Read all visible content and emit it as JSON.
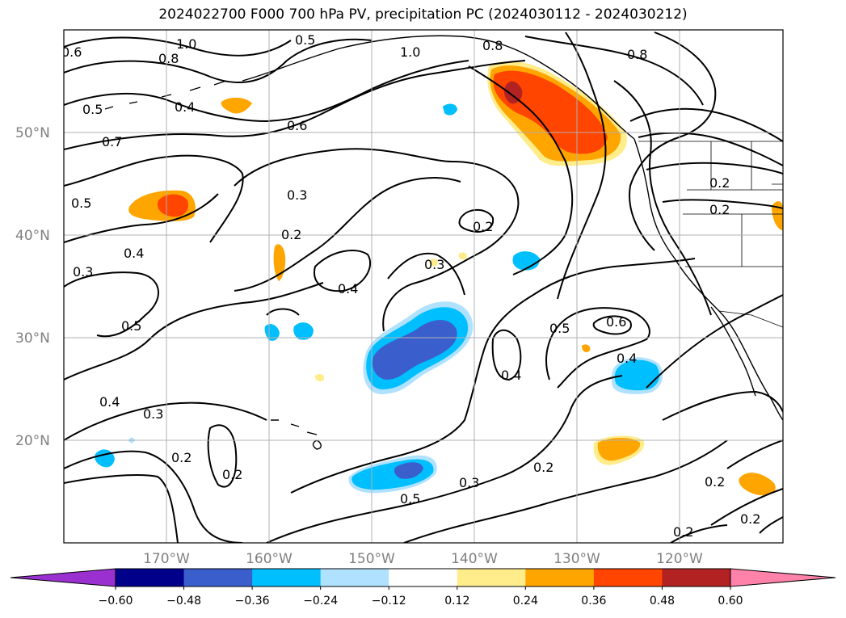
{
  "title": "2024022700 F000 700 hPa PV, precipitation PC (2024030112 - 2024030212)",
  "map": {
    "lat_ticks": [
      "50°N",
      "40°N",
      "30°N",
      "20°N"
    ],
    "lon_ticks": [
      "170°W",
      "160°W",
      "150°W",
      "140°W",
      "130°W",
      "120°W"
    ],
    "extent": {
      "lon_min": -180,
      "lon_max": -110,
      "lat_min": 10,
      "lat_max": 60
    },
    "gridlines": true
  },
  "contour_labels": [
    "1.0",
    "0.6",
    "0.8",
    "0.5",
    "1.0",
    "0.8",
    "0.8",
    "0.4",
    "0.5",
    "0.6",
    "0.7",
    "0.3",
    "0.5",
    "0.2",
    "0.2",
    "0.4",
    "0.2",
    "0.2",
    "0.3",
    "0.3",
    "0.4",
    "0.5",
    "0.6",
    "0.5",
    "0.4",
    "0.4",
    "0.4",
    "0.3",
    "0.2",
    "0.2",
    "0.3",
    "0.5",
    "0.2",
    "0.2",
    "0.2",
    "0.2"
  ],
  "colorbar": {
    "tick_labels": [
      "−0.60",
      "−0.48",
      "−0.36",
      "−0.24",
      "−0.12",
      "0.12",
      "0.24",
      "0.36",
      "0.48",
      "0.60"
    ],
    "colors": [
      "#9b30d0",
      "#00008b",
      "#3a5fcd",
      "#00bfff",
      "#b0e2ff",
      "#ffffff",
      "#ffec8b",
      "#ffa500",
      "#ff4500",
      "#b22222",
      "#ff82ab"
    ],
    "extend": "both"
  }
}
